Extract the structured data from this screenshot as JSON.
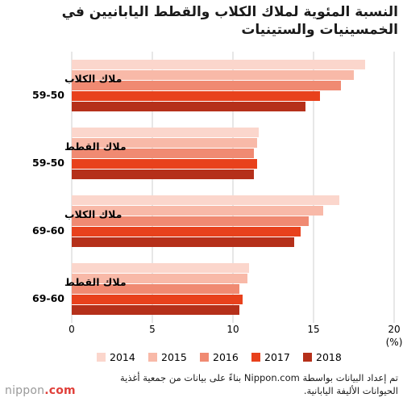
{
  "brand": {
    "name": "nippon",
    "domain": ".com"
  },
  "chart_data": {
    "type": "bar",
    "orientation": "horizontal",
    "title": "النسبة المئوية لملاك الكلاب والقطط اليابانيين في الخمسينيات والستينيات",
    "categories": [
      {
        "line1": "ملاك الكلاب",
        "line2": "59-50"
      },
      {
        "line1": "ملاك القطط",
        "line2": "59-50"
      },
      {
        "line1": "ملاك الكلاب",
        "line2": "69-60"
      },
      {
        "line1": "ملاك القطط",
        "line2": "69-60"
      }
    ],
    "series": [
      {
        "name": "2014",
        "color": "#fbd6cc",
        "values": [
          18.2,
          11.6,
          16.6,
          11.0
        ]
      },
      {
        "name": "2015",
        "color": "#f8b9a8",
        "values": [
          17.5,
          11.5,
          15.6,
          10.9
        ]
      },
      {
        "name": "2016",
        "color": "#f08a72",
        "values": [
          16.7,
          11.3,
          14.7,
          10.4
        ]
      },
      {
        "name": "2017",
        "color": "#e8411c",
        "values": [
          15.4,
          11.5,
          14.2,
          10.6
        ]
      },
      {
        "name": "2018",
        "color": "#b5301a",
        "values": [
          14.5,
          11.3,
          13.8,
          10.4
        ]
      }
    ],
    "xlim": [
      0,
      20
    ],
    "xticks": [
      0,
      5,
      10,
      15,
      20
    ],
    "xunit": "(%)",
    "grid": true,
    "legend_position": "bottom"
  },
  "source": "تم إعداد البيانات بواسطة Nippon.com بناءً على بيانات من جمعية أغذية الحيوانات الأليفة اليابانية."
}
